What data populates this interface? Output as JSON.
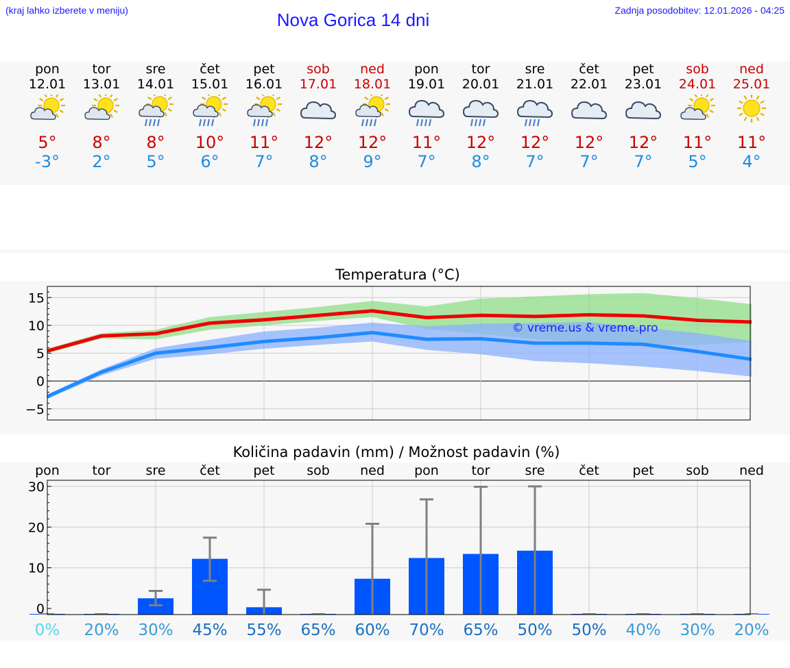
{
  "header": {
    "hint": "(kraj lahko izberete v meniju)",
    "title": "Nova Gorica 14 dni",
    "updated": "Zadnja posodobitev: 12.01.2026 - 04:25"
  },
  "days": [
    {
      "name": "pon",
      "date": "12.01",
      "icon": "partly-cloudy-icon",
      "max": "5°",
      "min": "-3°",
      "weekend": false
    },
    {
      "name": "tor",
      "date": "13.01",
      "icon": "partly-cloudy-icon",
      "max": "8°",
      "min": "2°",
      "weekend": false
    },
    {
      "name": "sre",
      "date": "14.01",
      "icon": "sun-cloud-rain-icon",
      "max": "8°",
      "min": "5°",
      "weekend": false
    },
    {
      "name": "čet",
      "date": "15.01",
      "icon": "sun-cloud-rain-icon",
      "max": "10°",
      "min": "6°",
      "weekend": false
    },
    {
      "name": "pet",
      "date": "16.01",
      "icon": "sun-cloud-rain-icon",
      "max": "11°",
      "min": "7°",
      "weekend": false
    },
    {
      "name": "sob",
      "date": "17.01",
      "icon": "cloudy-icon",
      "max": "12°",
      "min": "8°",
      "weekend": true
    },
    {
      "name": "ned",
      "date": "18.01",
      "icon": "sun-cloud-rain-icon",
      "max": "12°",
      "min": "9°",
      "weekend": true
    },
    {
      "name": "pon",
      "date": "19.01",
      "icon": "cloud-rain-icon",
      "max": "11°",
      "min": "7°",
      "weekend": false
    },
    {
      "name": "tor",
      "date": "20.01",
      "icon": "cloud-rain-icon",
      "max": "12°",
      "min": "8°",
      "weekend": false
    },
    {
      "name": "sre",
      "date": "21.01",
      "icon": "cloud-rain-icon",
      "max": "12°",
      "min": "7°",
      "weekend": false
    },
    {
      "name": "čet",
      "date": "22.01",
      "icon": "cloudy-icon",
      "max": "12°",
      "min": "7°",
      "weekend": false
    },
    {
      "name": "pet",
      "date": "23.01",
      "icon": "cloudy-icon",
      "max": "12°",
      "min": "7°",
      "weekend": false
    },
    {
      "name": "sob",
      "date": "24.01",
      "icon": "partly-cloudy-icon",
      "max": "11°",
      "min": "5°",
      "weekend": true
    },
    {
      "name": "ned",
      "date": "25.01",
      "icon": "sun-icon",
      "max": "11°",
      "min": "4°",
      "weekend": true
    }
  ],
  "colors": {
    "max_line": "#ee0000",
    "min_line": "#1f8bff",
    "max_band": "#90dd88",
    "min_band": "#8ab0ff",
    "bars": "#0055ff",
    "error": "#808080",
    "watermark": "#1a1aff"
  },
  "chart_data": [
    {
      "type": "line",
      "title": "Temperatura (°C)",
      "watermark": "© vreme.us & vreme.pro",
      "ylim": [
        -7,
        17
      ],
      "yticks": [
        15,
        10,
        5,
        0,
        -5
      ],
      "ytick_labels": [
        "15",
        "10",
        "5",
        "0",
        "−5"
      ],
      "grid": true,
      "series": [
        {
          "name": "max",
          "values": [
            5.4,
            8.1,
            8.5,
            10.4,
            11.0,
            11.8,
            12.6,
            11.4,
            11.8,
            11.6,
            11.9,
            11.7,
            10.9,
            10.6
          ],
          "band_low": [
            5.0,
            7.6,
            7.5,
            9.2,
            10.0,
            10.8,
            11.5,
            9.3,
            8.5,
            7.5,
            7.0,
            6.5,
            6.5,
            7.0
          ],
          "band_high": [
            5.8,
            8.6,
            9.2,
            11.5,
            12.4,
            13.3,
            14.4,
            13.4,
            14.8,
            15.2,
            15.6,
            15.8,
            14.9,
            13.8
          ]
        },
        {
          "name": "min",
          "values": [
            -2.8,
            1.6,
            5.0,
            6.0,
            7.1,
            7.8,
            8.7,
            7.5,
            7.6,
            6.8,
            6.8,
            6.6,
            5.3,
            3.9
          ],
          "band_low": [
            -3.2,
            1.0,
            4.0,
            4.8,
            5.8,
            6.5,
            7.1,
            5.6,
            4.8,
            3.6,
            3.2,
            2.6,
            1.8,
            0.8
          ],
          "band_high": [
            -2.4,
            2.1,
            5.9,
            7.4,
            8.9,
            9.6,
            10.5,
            9.8,
            10.3,
            10.4,
            10.6,
            9.6,
            8.6,
            7.2
          ]
        }
      ]
    },
    {
      "type": "bar",
      "title": "Količina padavin (mm) / Možnost padavin (%)",
      "categories": [
        "pon",
        "tor",
        "sre",
        "čet",
        "pet",
        "sob",
        "ned",
        "pon",
        "tor",
        "sre",
        "čet",
        "pet",
        "sob",
        "ned"
      ],
      "ylim": [
        -1.5,
        31.5
      ],
      "yticks": [
        30,
        20,
        10,
        0
      ],
      "ytick_labels": [
        "30",
        "20",
        "10",
        "0"
      ],
      "values": [
        0,
        0,
        2.5,
        12.2,
        0.3,
        0,
        7.3,
        12.4,
        13.4,
        14.2,
        0,
        0,
        0,
        0
      ],
      "err_low": [
        0,
        0,
        0.8,
        6.8,
        0,
        0,
        0,
        0,
        0,
        0,
        0,
        0,
        0,
        0
      ],
      "err_high": [
        0,
        0,
        4.3,
        17.4,
        4.6,
        0,
        20.8,
        26.8,
        29.9,
        30.0,
        0,
        0,
        0,
        0
      ],
      "probabilities": [
        "0%",
        "20%",
        "30%",
        "45%",
        "55%",
        "65%",
        "60%",
        "70%",
        "65%",
        "50%",
        "50%",
        "40%",
        "30%",
        "20%"
      ],
      "prob_colors": [
        "#5fd3e8",
        "#3a9ad8",
        "#3a9ad8",
        "#1a6fc0",
        "#1a6fc0",
        "#1a6fc0",
        "#1a6fc0",
        "#1a6fc0",
        "#1a6fc0",
        "#1a6fc0",
        "#1a6fc0",
        "#3a9ad8",
        "#3a9ad8",
        "#3a9ad8"
      ]
    }
  ]
}
